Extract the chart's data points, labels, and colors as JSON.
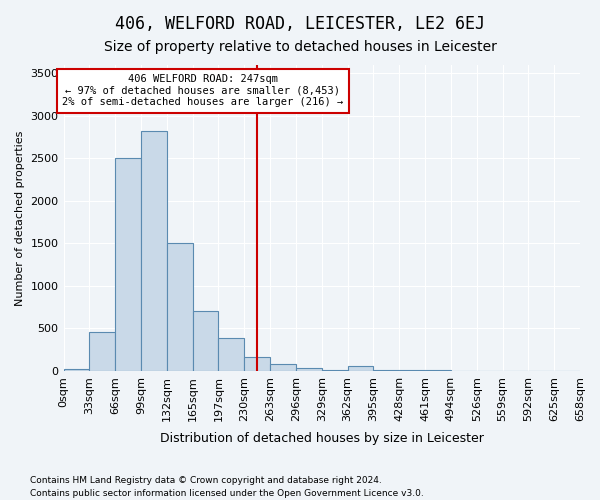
{
  "title": "406, WELFORD ROAD, LEICESTER, LE2 6EJ",
  "subtitle": "Size of property relative to detached houses in Leicester",
  "xlabel": "Distribution of detached houses by size in Leicester",
  "ylabel": "Number of detached properties",
  "bar_color": "#c9d9e8",
  "bar_edge_color": "#5a8ab0",
  "bins": [
    "0sqm",
    "33sqm",
    "66sqm",
    "99sqm",
    "132sqm",
    "165sqm",
    "197sqm",
    "230sqm",
    "263sqm",
    "296sqm",
    "329sqm",
    "362sqm",
    "395sqm",
    "428sqm",
    "461sqm",
    "494sqm",
    "526sqm",
    "559sqm",
    "592sqm",
    "625sqm",
    "658sqm"
  ],
  "values": [
    20,
    460,
    2500,
    2820,
    1510,
    705,
    390,
    160,
    80,
    35,
    15,
    60,
    10,
    10,
    5,
    0,
    0,
    0,
    0,
    0
  ],
  "property_line_x": 247,
  "property_line_bin_index": 7.5,
  "ylim": [
    0,
    3600
  ],
  "yticks": [
    0,
    500,
    1000,
    1500,
    2000,
    2500,
    3000,
    3500
  ],
  "annotation_text": "406 WELFORD ROAD: 247sqm\n← 97% of detached houses are smaller (8,453)\n2% of semi-detached houses are larger (216) →",
  "footnote1": "Contains HM Land Registry data © Crown copyright and database right 2024.",
  "footnote2": "Contains public sector information licensed under the Open Government Licence v3.0.",
  "bg_color": "#f0f4f8",
  "grid_color": "#ffffff",
  "title_fontsize": 12,
  "subtitle_fontsize": 10,
  "annotation_box_color": "#ffffff",
  "annotation_box_edge": "#cc0000",
  "vline_color": "#cc0000"
}
